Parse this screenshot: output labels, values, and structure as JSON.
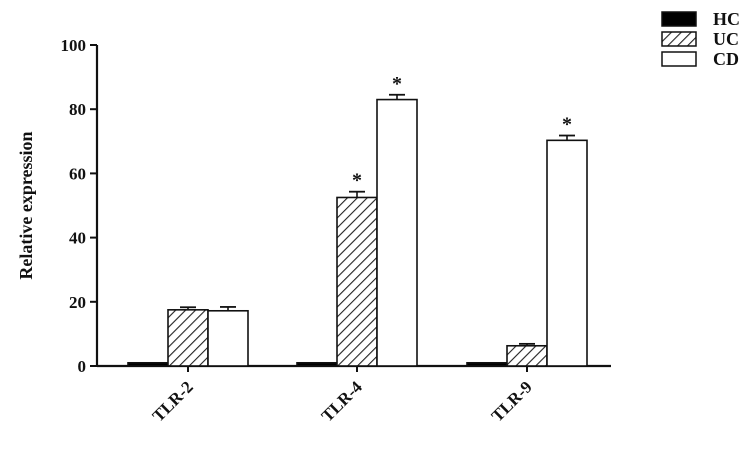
{
  "chart_data": {
    "type": "bar",
    "title": "",
    "xlabel": "",
    "ylabel": "Relative expression",
    "ylim": [
      0,
      100
    ],
    "yticks": [
      0,
      20,
      40,
      60,
      80,
      100
    ],
    "categories": [
      "TLR-2",
      "TLR-4",
      "TLR-9"
    ],
    "series": [
      {
        "name": "HC",
        "values": [
          1,
          1,
          1
        ],
        "errors": [
          0,
          0,
          0
        ],
        "fill": "solid",
        "color": "#000000"
      },
      {
        "name": "UC",
        "values": [
          17.5,
          52.5,
          6.3
        ],
        "errors": [
          0.8,
          1.8,
          0.6
        ],
        "fill": "hatched",
        "color": "#ffffff"
      },
      {
        "name": "CD",
        "values": [
          17.2,
          83,
          70.3
        ],
        "errors": [
          1.2,
          1.5,
          1.5
        ],
        "fill": "open",
        "color": "#ffffff"
      }
    ],
    "annotations": [
      {
        "category": "TLR-4",
        "series": "UC",
        "text": "*"
      },
      {
        "category": "TLR-4",
        "series": "CD",
        "text": "*"
      },
      {
        "category": "TLR-9",
        "series": "CD",
        "text": "*"
      }
    ],
    "grid": false,
    "legend_position": "top-right"
  }
}
